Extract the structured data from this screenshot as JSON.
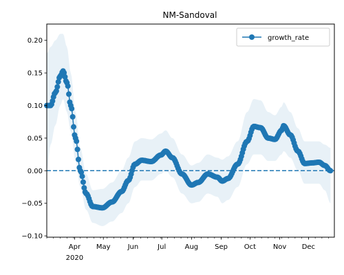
{
  "chart_data": {
    "type": "line",
    "title": "NM-Sandoval",
    "xlabel": "",
    "ylabel": "",
    "ylim": [
      -0.102,
      0.225
    ],
    "grid": false,
    "legend_position": "top-right",
    "series_color": "#1f77b4",
    "band_color": "#1f77b4",
    "zero_line": 0,
    "x_ticks": [
      {
        "date": "2020-04-01",
        "label": "Apr",
        "sublabel": "2020"
      },
      {
        "date": "2020-05-01",
        "label": "May"
      },
      {
        "date": "2020-06-01",
        "label": "Jun"
      },
      {
        "date": "2020-07-01",
        "label": "Jul"
      },
      {
        "date": "2020-08-01",
        "label": "Aug"
      },
      {
        "date": "2020-09-01",
        "label": "Sep"
      },
      {
        "date": "2020-10-01",
        "label": "Oct"
      },
      {
        "date": "2020-11-01",
        "label": "Nov"
      },
      {
        "date": "2020-12-01",
        "label": "Dec"
      }
    ],
    "y_ticks": [
      {
        "value": 0.2,
        "label": "0.20"
      },
      {
        "value": 0.15,
        "label": "0.15"
      },
      {
        "value": 0.1,
        "label": "0.10"
      },
      {
        "value": 0.05,
        "label": "0.05"
      },
      {
        "value": 0.0,
        "label": "0.00"
      },
      {
        "value": -0.05,
        "label": "−0.05"
      },
      {
        "value": -0.1,
        "label": "−0.10"
      }
    ],
    "series": [
      {
        "name": "growth_rate",
        "anchors": [
          {
            "date": "2020-03-03",
            "y": 0.1,
            "lo": 0.0,
            "hi": 0.18
          },
          {
            "date": "2020-03-07",
            "y": 0.1,
            "lo": 0.04,
            "hi": 0.19
          },
          {
            "date": "2020-03-12",
            "y": 0.12,
            "lo": 0.07,
            "hi": 0.2
          },
          {
            "date": "2020-03-17",
            "y": 0.145,
            "lo": 0.1,
            "hi": 0.21
          },
          {
            "date": "2020-03-20",
            "y": 0.153,
            "lo": 0.11,
            "hi": 0.21
          },
          {
            "date": "2020-03-24",
            "y": 0.135,
            "lo": 0.09,
            "hi": 0.19
          },
          {
            "date": "2020-03-28",
            "y": 0.1,
            "lo": 0.06,
            "hi": 0.15
          },
          {
            "date": "2020-04-02",
            "y": 0.05,
            "lo": 0.015,
            "hi": 0.09
          },
          {
            "date": "2020-04-07",
            "y": 0.0,
            "lo": -0.025,
            "hi": 0.035
          },
          {
            "date": "2020-04-13",
            "y": -0.035,
            "lo": -0.06,
            "hi": -0.005
          },
          {
            "date": "2020-04-20",
            "y": -0.055,
            "lo": -0.08,
            "hi": -0.03
          },
          {
            "date": "2020-04-30",
            "y": -0.057,
            "lo": -0.085,
            "hi": -0.028
          },
          {
            "date": "2020-05-10",
            "y": -0.048,
            "lo": -0.078,
            "hi": -0.018
          },
          {
            "date": "2020-05-20",
            "y": -0.032,
            "lo": -0.065,
            "hi": 0.0
          },
          {
            "date": "2020-05-27",
            "y": -0.015,
            "lo": -0.05,
            "hi": 0.02
          },
          {
            "date": "2020-06-03",
            "y": 0.01,
            "lo": -0.025,
            "hi": 0.045
          },
          {
            "date": "2020-06-10",
            "y": 0.016,
            "lo": -0.015,
            "hi": 0.05
          },
          {
            "date": "2020-06-20",
            "y": 0.014,
            "lo": -0.015,
            "hi": 0.048
          },
          {
            "date": "2020-06-30",
            "y": 0.024,
            "lo": -0.005,
            "hi": 0.057
          },
          {
            "date": "2020-07-05",
            "y": 0.03,
            "lo": 0.0,
            "hi": 0.062
          },
          {
            "date": "2020-07-12",
            "y": 0.02,
            "lo": -0.01,
            "hi": 0.05
          },
          {
            "date": "2020-07-22",
            "y": -0.005,
            "lo": -0.035,
            "hi": 0.025
          },
          {
            "date": "2020-08-01",
            "y": -0.022,
            "lo": -0.05,
            "hi": 0.008
          },
          {
            "date": "2020-08-08",
            "y": -0.018,
            "lo": -0.048,
            "hi": 0.012
          },
          {
            "date": "2020-08-18",
            "y": -0.005,
            "lo": -0.035,
            "hi": 0.025
          },
          {
            "date": "2020-08-28",
            "y": -0.01,
            "lo": -0.04,
            "hi": 0.02
          },
          {
            "date": "2020-09-02",
            "y": -0.016,
            "lo": -0.05,
            "hi": 0.017
          },
          {
            "date": "2020-09-08",
            "y": -0.012,
            "lo": -0.045,
            "hi": 0.022
          },
          {
            "date": "2020-09-18",
            "y": 0.01,
            "lo": -0.025,
            "hi": 0.045
          },
          {
            "date": "2020-09-28",
            "y": 0.045,
            "lo": 0.01,
            "hi": 0.09
          },
          {
            "date": "2020-10-05",
            "y": 0.068,
            "lo": 0.025,
            "hi": 0.11
          },
          {
            "date": "2020-10-12",
            "y": 0.066,
            "lo": 0.025,
            "hi": 0.108
          },
          {
            "date": "2020-10-20",
            "y": 0.05,
            "lo": 0.015,
            "hi": 0.09
          },
          {
            "date": "2020-10-27",
            "y": 0.048,
            "lo": 0.015,
            "hi": 0.085
          },
          {
            "date": "2020-11-03",
            "y": 0.062,
            "lo": 0.025,
            "hi": 0.098
          },
          {
            "date": "2020-11-05",
            "y": 0.069,
            "lo": 0.03,
            "hi": 0.105
          },
          {
            "date": "2020-11-12",
            "y": 0.055,
            "lo": 0.02,
            "hi": 0.09
          },
          {
            "date": "2020-11-20",
            "y": 0.03,
            "lo": 0.0,
            "hi": 0.065
          },
          {
            "date": "2020-11-27",
            "y": 0.011,
            "lo": -0.02,
            "hi": 0.045
          },
          {
            "date": "2020-12-05",
            "y": 0.012,
            "lo": -0.02,
            "hi": 0.045
          },
          {
            "date": "2020-12-12",
            "y": 0.013,
            "lo": -0.02,
            "hi": 0.045
          },
          {
            "date": "2020-12-18",
            "y": 0.008,
            "lo": -0.03,
            "hi": 0.04
          },
          {
            "date": "2020-12-24",
            "y": 0.0,
            "lo": -0.05,
            "hi": 0.035
          }
        ]
      }
    ]
  }
}
